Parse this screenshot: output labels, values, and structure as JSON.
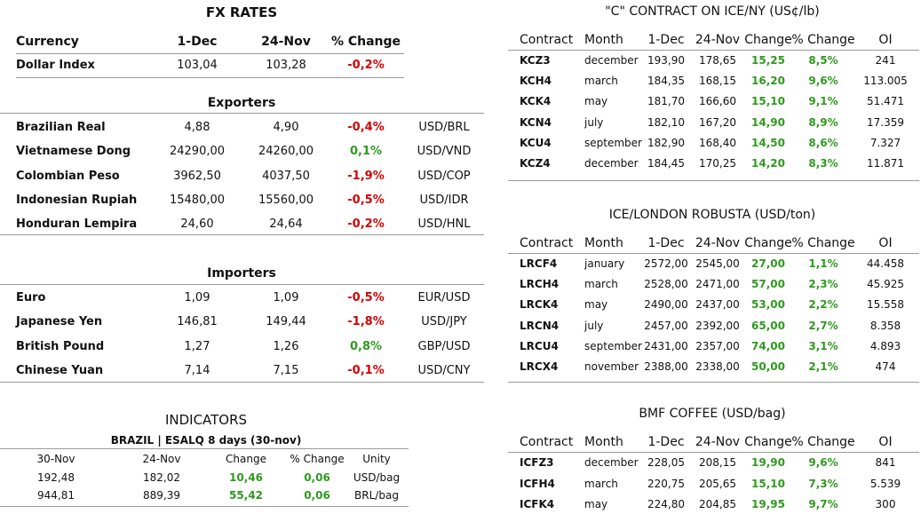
{
  "fx": {
    "title": "FX RATES",
    "headers": [
      "Currency",
      "1-Dec",
      "24-Nov",
      "% Change"
    ],
    "rows": [
      [
        "Dollar Index",
        "103,04",
        "103,28",
        "-0,2%"
      ]
    ],
    "exporters": {
      "title": "Exporters",
      "rows": [
        [
          "Brazilian Real",
          "4,88",
          "4,90",
          "-0,4%",
          "USD/BRL"
        ],
        [
          "Vietnamese Dong",
          "24290,00",
          "24260,00",
          "0,1%",
          "USD/VND"
        ],
        [
          "Colombian Peso",
          "3962,50",
          "4037,50",
          "-1,9%",
          "USD/COP"
        ],
        [
          "Indonesian Rupiah",
          "15480,00",
          "15560,00",
          "-0,5%",
          "USD/IDR"
        ],
        [
          "Honduran Lempira",
          "24,60",
          "24,64",
          "-0,2%",
          "USD/HNL"
        ]
      ]
    },
    "importers": {
      "title": "Importers",
      "rows": [
        [
          "Euro",
          "1,09",
          "1,09",
          "-0,5%",
          "EUR/USD"
        ],
        [
          "Japanese Yen",
          "146,81",
          "149,44",
          "-1,8%",
          "USD/JPY"
        ],
        [
          "British Pound",
          "1,27",
          "1,26",
          "0,8%",
          "GBP/USD"
        ],
        [
          "Chinese Yuan",
          "7,14",
          "7,15",
          "-0,1%",
          "USD/CNY"
        ]
      ]
    }
  },
  "indicators": {
    "title": "INDICATORS",
    "subtitle": "BRAZIL | ESALQ 8 days (30-nov)",
    "headers": [
      "30-Nov",
      "24-Nov",
      "Change",
      "% Change",
      "Unity"
    ],
    "rows": [
      [
        "192,48",
        "182,02",
        "10,46",
        "0,06",
        "USD/bag"
      ],
      [
        "944,81",
        "889,39",
        "55,42",
        "0,06",
        "BRL/bag"
      ]
    ]
  },
  "ice_ny": {
    "title": "\"C\" CONTRACT ON ICE/NY (US¢/lb)",
    "headers": [
      "Contract",
      "Month",
      "1-Dec",
      "24-Nov",
      "Change",
      "% Change",
      "OI"
    ],
    "rows": [
      [
        "KCZ3",
        "december",
        "193,90",
        "178,65",
        "15,25",
        "8,5%",
        "241"
      ],
      [
        "KCH4",
        "march",
        "184,35",
        "168,15",
        "16,20",
        "9,6%",
        "113.005"
      ],
      [
        "KCK4",
        "may",
        "181,70",
        "166,60",
        "15,10",
        "9,1%",
        "51.471"
      ],
      [
        "KCN4",
        "july",
        "182,10",
        "167,20",
        "14,90",
        "8,9%",
        "17.359"
      ],
      [
        "KCU4",
        "september",
        "182,90",
        "168,40",
        "14,50",
        "8,6%",
        "7.327"
      ],
      [
        "KCZ4",
        "december",
        "184,45",
        "170,25",
        "14,20",
        "8,3%",
        "11.871"
      ]
    ]
  },
  "robusta": {
    "title": "ICE/LONDON ROBUSTA (USD/ton)",
    "headers": [
      "Contract",
      "Month",
      "1-Dec",
      "24-Nov",
      "Change",
      "% Change",
      "OI"
    ],
    "rows": [
      [
        "LRCF4",
        "january",
        "2572,00",
        "2545,00",
        "27,00",
        "1,1%",
        "44.458"
      ],
      [
        "LRCH4",
        "march",
        "2528,00",
        "2471,00",
        "57,00",
        "2,3%",
        "45.925"
      ],
      [
        "LRCK4",
        "may",
        "2490,00",
        "2437,00",
        "53,00",
        "2,2%",
        "15.558"
      ],
      [
        "LRCN4",
        "july",
        "2457,00",
        "2392,00",
        "65,00",
        "2,7%",
        "8.358"
      ],
      [
        "LRCU4",
        "september",
        "2431,00",
        "2357,00",
        "74,00",
        "3,1%",
        "4.893"
      ],
      [
        "LRCX4",
        "november",
        "2388,00",
        "2338,00",
        "50,00",
        "2,1%",
        "474"
      ]
    ]
  },
  "bmf": {
    "title": "BMF COFFEE (USD/bag)",
    "headers": [
      "Contract",
      "Month",
      "1-Dec",
      "24-Nov",
      "Change",
      "% Change",
      "OI"
    ],
    "rows": [
      [
        "ICFZ3",
        "december",
        "228,05",
        "208,15",
        "19,90",
        "9,6%",
        "841"
      ],
      [
        "ICFH4",
        "march",
        "220,75",
        "205,65",
        "15,10",
        "7,3%",
        "5.539"
      ],
      [
        "ICFK4",
        "may",
        "224,80",
        "204,85",
        "19,95",
        "9,7%",
        "300"
      ]
    ]
  }
}
